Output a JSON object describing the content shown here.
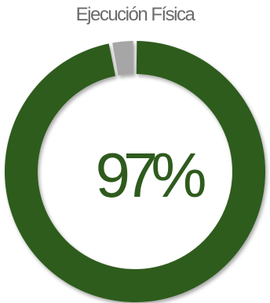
{
  "chart_data": {
    "type": "pie",
    "title": "Ejecución Física",
    "value_label": "97%",
    "values": [
      97,
      3
    ],
    "colors": {
      "filled": "#2e5b1d",
      "remaining": "#a6a6a6"
    }
  }
}
